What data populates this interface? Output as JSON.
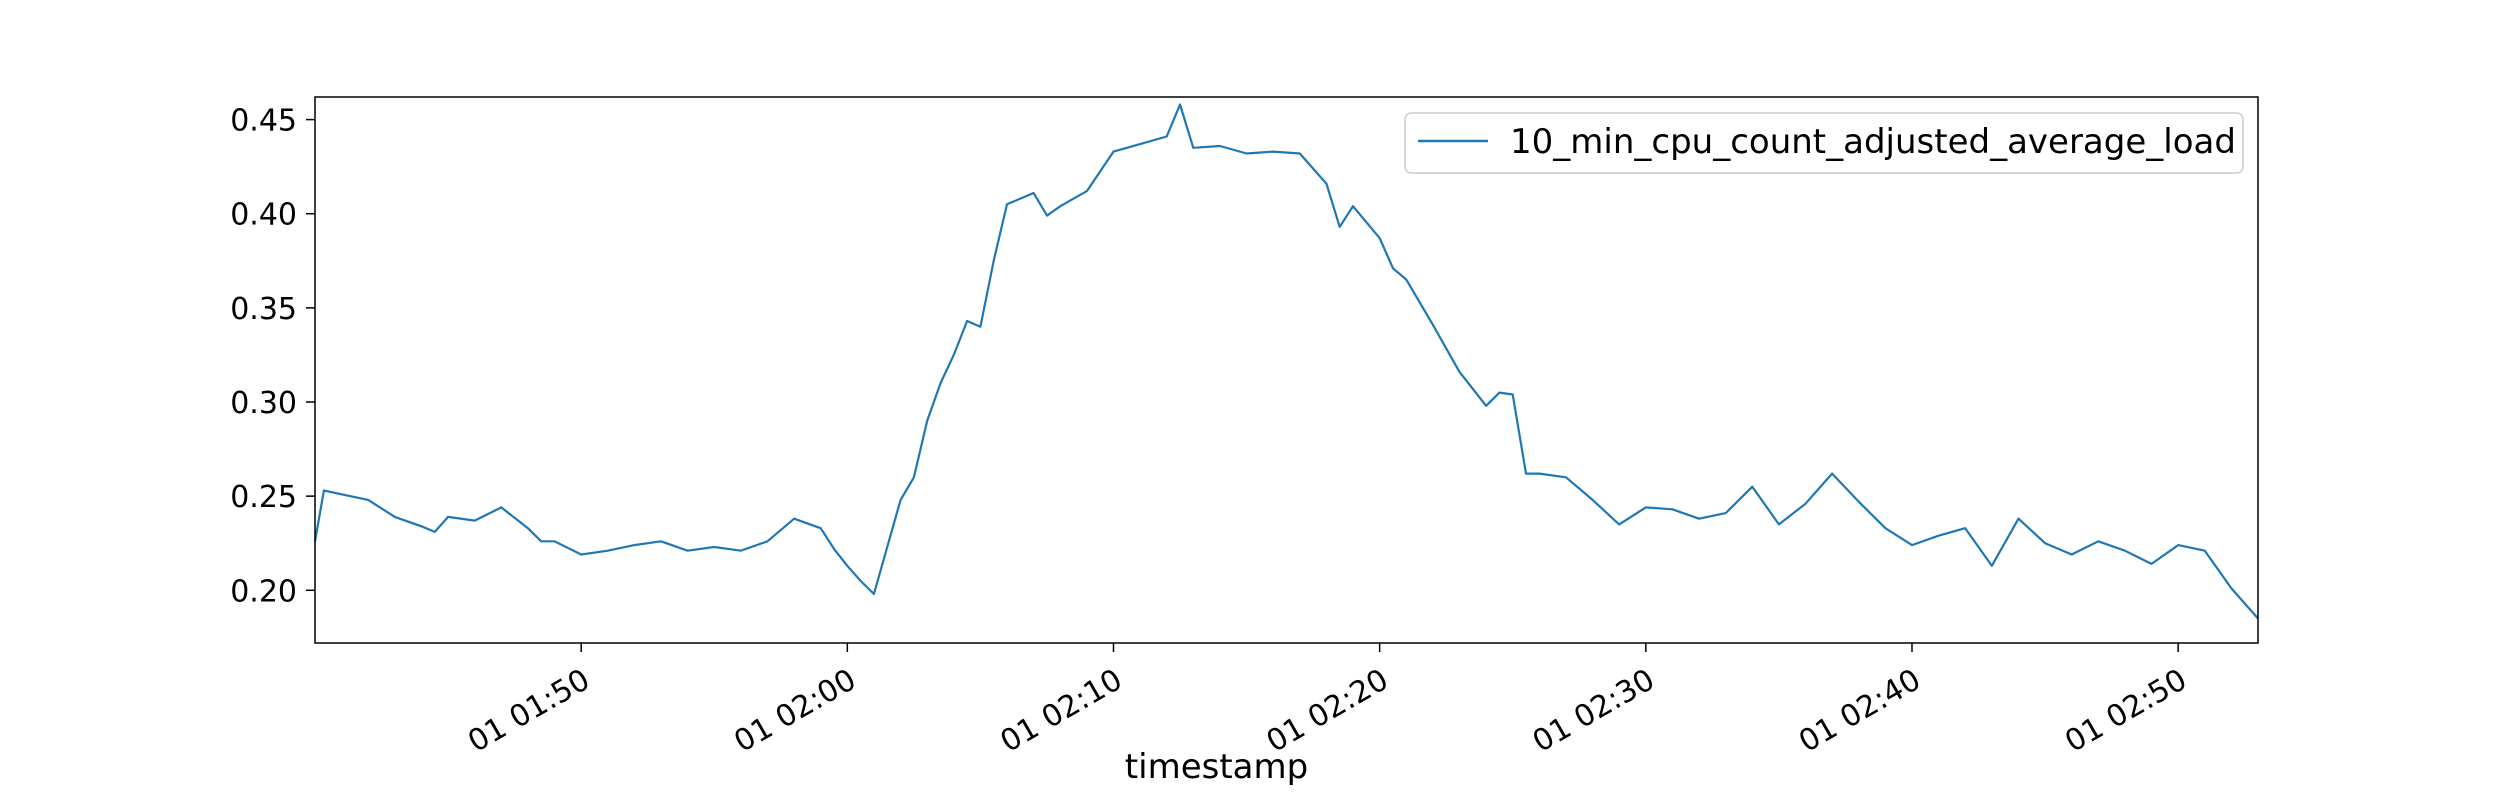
{
  "chart_data": {
    "type": "line",
    "title": "",
    "xlabel": "timestamp",
    "ylabel": "",
    "x_range": [
      "01 01:40",
      "01 02:53"
    ],
    "ylim": [
      0.172,
      0.462
    ],
    "xticks": [
      {
        "label": "01 01:50",
        "t": "01:50"
      },
      {
        "label": "01 02:00",
        "t": "02:00"
      },
      {
        "label": "01 02:10",
        "t": "02:10"
      },
      {
        "label": "01 02:20",
        "t": "02:20"
      },
      {
        "label": "01 02:30",
        "t": "02:30"
      },
      {
        "label": "01 02:40",
        "t": "02:40"
      },
      {
        "label": "01 02:50",
        "t": "02:50"
      }
    ],
    "yticks": [
      {
        "label": "0.20",
        "value": 0.2
      },
      {
        "label": "0.25",
        "value": 0.25
      },
      {
        "label": "0.30",
        "value": 0.3
      },
      {
        "label": "0.35",
        "value": 0.35
      },
      {
        "label": "0.40",
        "value": 0.4
      },
      {
        "label": "0.45",
        "value": 0.45
      }
    ],
    "grid": false,
    "legend_position": "top-right",
    "series": [
      {
        "name": "10_min_cpu_count_adjusted_average_load",
        "color": "#1f77b4",
        "x": [
          "01:40",
          "01:40:20",
          "01:41",
          "01:42",
          "01:43",
          "01:44",
          "01:44:30",
          "01:45",
          "01:46",
          "01:47",
          "01:48",
          "01:48:30",
          "01:49",
          "01:50",
          "01:51",
          "01:52",
          "01:53",
          "01:54",
          "01:55",
          "01:56",
          "01:57",
          "01:58",
          "01:59",
          "01:59:30",
          "02:00",
          "02:00:30",
          "02:01",
          "02:02",
          "02:02:30",
          "02:03",
          "02:03:30",
          "02:04",
          "02:04:30",
          "02:05",
          "02:05:30",
          "02:06",
          "02:07",
          "02:07:30",
          "02:08",
          "02:09",
          "02:10",
          "02:11",
          "02:12",
          "02:12:30",
          "02:13",
          "02:14",
          "02:15",
          "02:16",
          "02:17",
          "02:18",
          "02:18:30",
          "02:19",
          "02:20",
          "02:20:30",
          "02:21",
          "02:22",
          "02:23",
          "02:24",
          "02:24:30",
          "02:25",
          "02:25:30",
          "02:26",
          "02:27",
          "02:28",
          "02:29",
          "02:30",
          "02:31",
          "02:32",
          "02:33",
          "02:34",
          "02:35",
          "02:36",
          "02:37",
          "02:38",
          "02:39",
          "02:40",
          "02:41",
          "02:42",
          "02:43",
          "02:44",
          "02:45",
          "02:46",
          "02:47",
          "02:48",
          "02:49",
          "02:50",
          "02:51",
          "02:52",
          "02:53"
        ],
        "values": [
          0.226,
          0.253,
          0.251,
          0.248,
          0.239,
          0.234,
          0.231,
          0.239,
          0.237,
          0.244,
          0.233,
          0.226,
          0.226,
          0.219,
          0.221,
          0.224,
          0.226,
          0.221,
          0.223,
          0.221,
          0.226,
          0.238,
          0.233,
          0.222,
          0.213,
          0.205,
          0.198,
          0.248,
          0.26,
          0.29,
          0.31,
          0.325,
          0.343,
          0.34,
          0.375,
          0.405,
          0.411,
          0.399,
          0.404,
          0.412,
          0.433,
          0.437,
          0.441,
          0.458,
          0.435,
          0.436,
          0.432,
          0.433,
          0.432,
          0.416,
          0.393,
          0.404,
          0.387,
          0.371,
          0.365,
          0.341,
          0.316,
          0.298,
          0.305,
          0.304,
          0.262,
          0.262,
          0.26,
          0.248,
          0.235,
          0.244,
          0.243,
          0.238,
          0.241,
          0.255,
          0.235,
          0.246,
          0.262,
          0.247,
          0.233,
          0.224,
          0.229,
          0.233,
          0.213,
          0.238,
          0.225,
          0.219,
          0.226,
          0.221,
          0.214,
          0.224,
          0.221,
          0.201,
          0.185
        ]
      }
    ]
  }
}
